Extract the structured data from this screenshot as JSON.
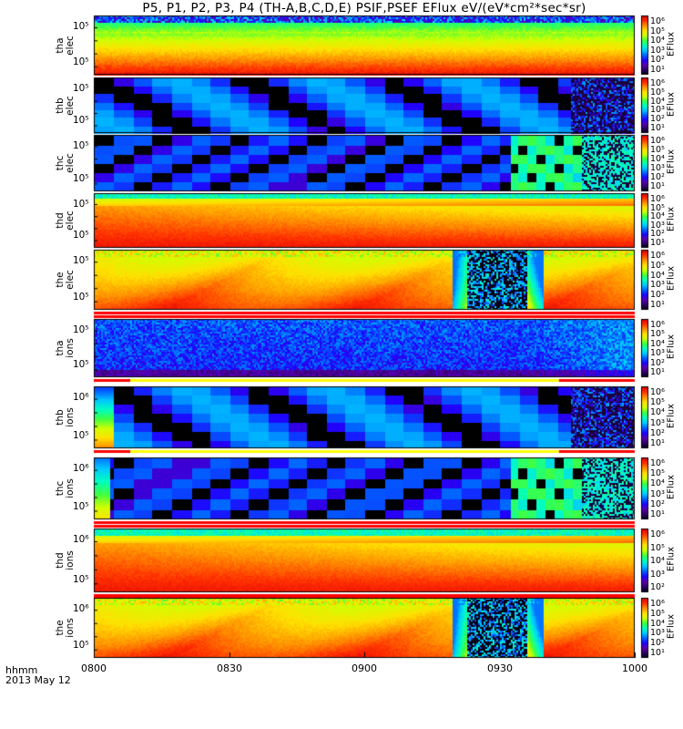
{
  "title": "P5, P1, P2, P3, P4 (TH-A,B,C,D,E) PSIF,PSEF EFlux eV/(eV*cm²*sec*sr)",
  "footer": {
    "line1": "hhmm",
    "line2": "2013 May 12"
  },
  "chart_data": {
    "type": "heatmap",
    "description_units": "Energy flux spectrograms, 10 stacked panels, shared time axis",
    "x_axis": {
      "ticks": [
        "0800",
        "0830",
        "0900",
        "0930",
        "1000"
      ],
      "range": [
        "0800",
        "1000"
      ]
    },
    "colorbar_label": "EFlux",
    "panels": [
      {
        "name": "tha elec",
        "ylabel": [
          "tha",
          "elec"
        ],
        "yticks": [
          "10⁵",
          "10⁵"
        ],
        "cbar_ticks": [
          "10⁶",
          "10⁵",
          "10⁴",
          "10³",
          "10²",
          "10¹"
        ],
        "style": "elec_hot_broad"
      },
      {
        "name": "thb elec",
        "ylabel": [
          "thb",
          "elec"
        ],
        "yticks": [
          "10⁵",
          "10⁵"
        ],
        "cbar_ticks": [
          "10⁶",
          "10⁵",
          "10⁴",
          "10³",
          "10²",
          "10¹"
        ],
        "style": "sparse_dark"
      },
      {
        "name": "thc elec",
        "ylabel": [
          "thc",
          "elec"
        ],
        "yticks": [
          "10⁵",
          "10⁵"
        ],
        "cbar_ticks": [
          "10⁶",
          "10⁵",
          "10⁴",
          "10³",
          "10²",
          "10¹"
        ],
        "style": "sparse_cyan"
      },
      {
        "name": "thd elec",
        "ylabel": [
          "thd",
          "elec"
        ],
        "yticks": [
          "10⁵",
          "10⁵"
        ],
        "cbar_ticks": [
          "10⁶",
          "10⁵",
          "10⁴",
          "10³",
          "10²",
          "10¹"
        ],
        "style": "hot"
      },
      {
        "name": "the elec",
        "ylabel": [
          "the",
          "elec"
        ],
        "yticks": [
          "10⁵",
          "10⁵"
        ],
        "cbar_ticks": [
          "10⁶",
          "10⁵",
          "10⁴",
          "10³",
          "10²",
          "10¹"
        ],
        "style": "hot_gap"
      },
      {
        "name": "tha ions",
        "ylabel": [
          "tha",
          "ions"
        ],
        "yticks": [
          "10⁵",
          "10⁵"
        ],
        "cbar_ticks": [
          "10⁶",
          "10⁵",
          "10⁴",
          "10³",
          "10²",
          "10¹"
        ],
        "style": "blue_noise"
      },
      {
        "name": "thb ions",
        "ylabel": [
          "thb",
          "ions"
        ],
        "yticks": [
          "10⁶",
          "10⁵"
        ],
        "cbar_ticks": [
          "10⁶",
          "10⁵",
          "10⁴",
          "10³",
          "10²",
          "10¹"
        ],
        "style": "sparse_dark_ions"
      },
      {
        "name": "thc ions",
        "ylabel": [
          "thc",
          "ions"
        ],
        "yticks": [
          "10⁶",
          "10⁵"
        ],
        "cbar_ticks": [
          "10⁶",
          "10⁵",
          "10⁴",
          "10³",
          "10²",
          "10¹"
        ],
        "style": "sparse_cyan_ions"
      },
      {
        "name": "thd ions",
        "ylabel": [
          "thd",
          "ions"
        ],
        "yticks": [
          "10⁶",
          "10⁵"
        ],
        "cbar_ticks": [
          "10⁶",
          "10⁵",
          "10⁴",
          "10³",
          "10²"
        ],
        "style": "hot_ions"
      },
      {
        "name": "the ions",
        "ylabel": [
          "the",
          "ions"
        ],
        "yticks": [
          "10⁶",
          "10⁵"
        ],
        "cbar_ticks": [
          "10⁶",
          "10⁵",
          "10⁴",
          "10³",
          "10²",
          "10¹"
        ],
        "style": "hot_gap"
      }
    ],
    "colormap": [
      "#000000",
      "#2a0060",
      "#5a00a8",
      "#2000ff",
      "#0060ff",
      "#00c8ff",
      "#00ffc0",
      "#40ff40",
      "#d0ff00",
      "#ffe000",
      "#ff9000",
      "#ff3000",
      "#e00000"
    ],
    "mode_bars_color": {
      "fast": "#ff0000",
      "slow": "#ffff00",
      "background": "#ffffff"
    }
  }
}
